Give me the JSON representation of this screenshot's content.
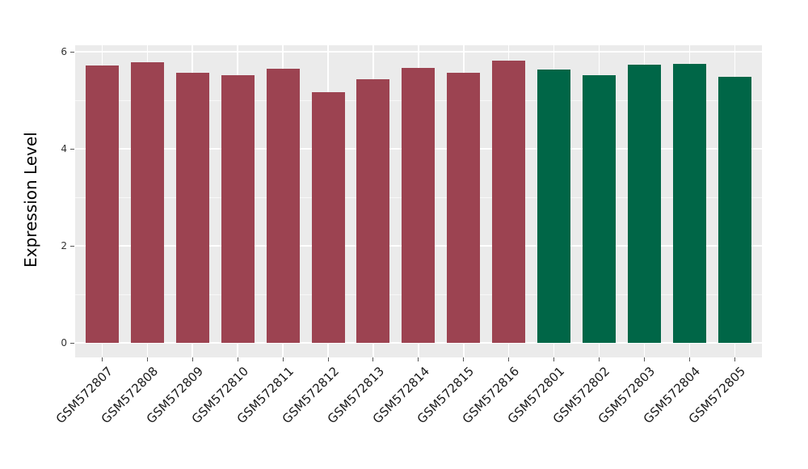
{
  "figure": {
    "background": "#ffffff",
    "panel_background": "#ebebeb",
    "gridline_color": "#ffffff",
    "tick_mark_color": "#555555",
    "y_tick_label_color": "#333333",
    "x_tick_label_color": "#1a1a1a",
    "axis_title_color": "#000000"
  },
  "chart_data": {
    "type": "bar",
    "title": "",
    "xlabel": "",
    "ylabel": "Expression Level",
    "ylim": [
      0,
      6.13
    ],
    "yticks": [
      0,
      2,
      4,
      6
    ],
    "yticks_minor": [
      1,
      3,
      5
    ],
    "grid": "white major horizontal at 0/2/4/6, minor at 1/3/5, vertical majors at bar centers, on gray panel",
    "legend_position": "none",
    "categories": [
      "GSM572807",
      "GSM572808",
      "GSM572809",
      "GSM572810",
      "GSM572811",
      "GSM572812",
      "GSM572813",
      "GSM572814",
      "GSM572815",
      "GSM572816",
      "GSM572801",
      "GSM572802",
      "GSM572803",
      "GSM572804",
      "GSM572805"
    ],
    "values": [
      5.72,
      5.79,
      5.56,
      5.52,
      5.65,
      5.17,
      5.43,
      5.66,
      5.57,
      5.82,
      5.64,
      5.52,
      5.74,
      5.75,
      5.49
    ],
    "bar_colors": [
      "#9c4351",
      "#9c4351",
      "#9c4351",
      "#9c4351",
      "#9c4351",
      "#9c4351",
      "#9c4351",
      "#9c4351",
      "#9c4351",
      "#9c4351",
      "#006647",
      "#006647",
      "#006647",
      "#006647",
      "#006647"
    ],
    "color_groups": [
      {
        "color": "#9c4351",
        "first": "GSM572807",
        "last": "GSM572816",
        "count": 10
      },
      {
        "color": "#006647",
        "first": "GSM572801",
        "last": "GSM572805",
        "count": 5
      }
    ]
  }
}
